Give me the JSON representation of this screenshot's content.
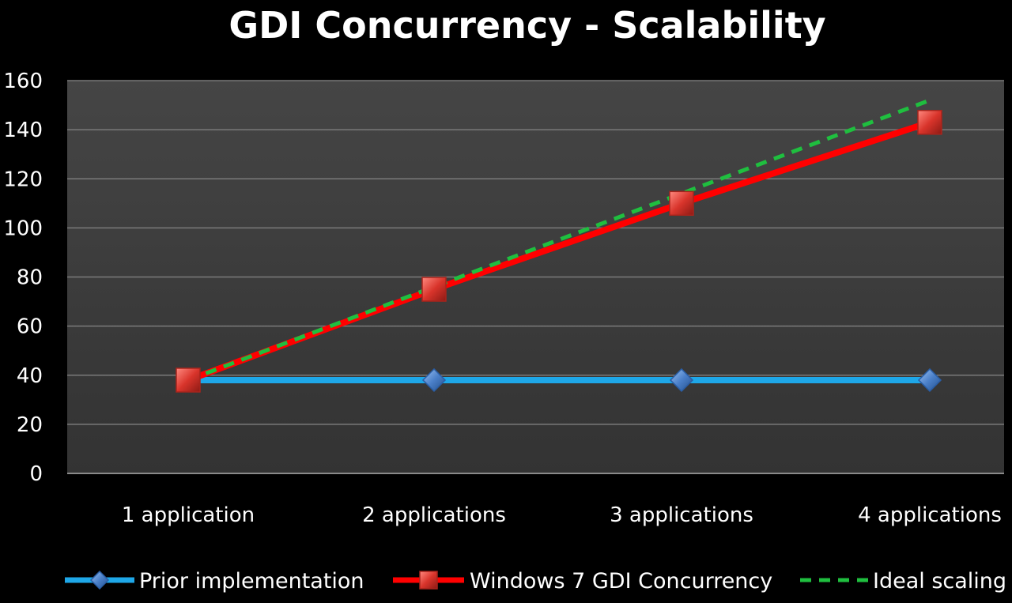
{
  "chart_data": {
    "type": "line",
    "title": "GDI Concurrency - Scalability",
    "xlabel": "",
    "ylabel": "",
    "categories": [
      "1 application",
      "2 applications",
      "3 applications",
      "4 applications"
    ],
    "ylim": [
      0,
      160
    ],
    "yticks": [
      0,
      20,
      40,
      60,
      80,
      100,
      120,
      140,
      160
    ],
    "grid": true,
    "legend": "bottom",
    "series": [
      {
        "name": "Prior implementation",
        "values": [
          38,
          38,
          38,
          38
        ],
        "color": "#1ea7e8",
        "marker": "diamond",
        "style": "solid"
      },
      {
        "name": "Windows 7 GDI Concurrency",
        "values": [
          38,
          75,
          110,
          143
        ],
        "color": "#ff0000",
        "marker": "square",
        "style": "solid"
      },
      {
        "name": "Ideal scaling",
        "values": [
          38,
          76,
          114,
          152
        ],
        "color": "#1fbf3f",
        "marker": "none",
        "style": "dashed"
      }
    ],
    "colors": {
      "background": "#000000",
      "plot_area": "#3a3a3a",
      "gridline": "#7a7a7a",
      "text": "#ffffff"
    }
  }
}
